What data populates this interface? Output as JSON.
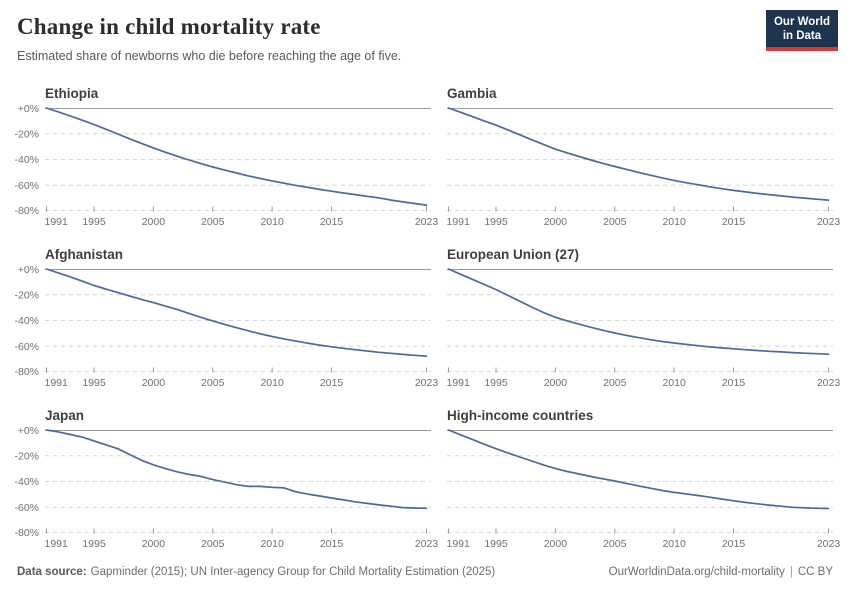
{
  "header": {
    "title": "Change in child mortality rate",
    "subtitle": "Estimated share of newborns who die before reaching the age of five.",
    "logo": {
      "line1": "Our World",
      "line2": "in Data"
    }
  },
  "footer": {
    "datasource_label": "Data source:",
    "datasource_text": "Gapminder (2015); UN Inter-agency Group for Child Mortality Estimation (2025)",
    "link": "OurWorldinData.org/child-mortality",
    "separator": "|",
    "license": "CC BY"
  },
  "colors": {
    "line": "#4c6a9c",
    "grid_solid": "#9b9b9b",
    "grid_dash": "#d5d5d5",
    "axis_text": "#717171",
    "facet_title": "#3f3f3f",
    "title": "#2d2d2d",
    "subtitle": "#5a5a5a",
    "footer": "#6e6e6e",
    "footer_label": "#595959",
    "logo_bg": "#1d3350",
    "logo_red": "#d73a36"
  },
  "chart_data": {
    "type": "line",
    "title": "Change in child mortality rate",
    "subtitle": "Estimated share of newborns who die before reaching the age of five.",
    "layout": "2x3 small multiples, shared y-axis labels on left column, horizontal dashed grid, no legend",
    "xlabel": "",
    "ylabel": "",
    "xlim": [
      1991,
      2023
    ],
    "ylim": [
      -80,
      0
    ],
    "x_ticks": [
      1991,
      1995,
      2000,
      2005,
      2010,
      2015,
      2023
    ],
    "x_tick_labels": [
      "1991",
      "1995",
      "2000",
      "2005",
      "2010",
      "2015",
      "2023"
    ],
    "y_ticks": [
      0,
      -20,
      -40,
      -60,
      -80
    ],
    "y_tick_labels": [
      "+0%",
      "-20%",
      "-40%",
      "-60%",
      "-80%"
    ],
    "x": [
      1991,
      1992,
      1993,
      1994,
      1995,
      1996,
      1997,
      1998,
      1999,
      2000,
      2001,
      2002,
      2003,
      2004,
      2005,
      2006,
      2007,
      2008,
      2009,
      2010,
      2011,
      2012,
      2013,
      2014,
      2015,
      2016,
      2017,
      2018,
      2019,
      2020,
      2021,
      2022,
      2023
    ],
    "series": [
      {
        "name": "Ethiopia",
        "values": [
          0,
          -3,
          -6.2,
          -9.5,
          -12.8,
          -16.5,
          -20.2,
          -23.9,
          -27.5,
          -31,
          -34.3,
          -37.4,
          -40.4,
          -43.2,
          -45.8,
          -48.2,
          -50.5,
          -52.7,
          -54.7,
          -56.6,
          -58.4,
          -60.1,
          -61.7,
          -63.2,
          -64.6,
          -66,
          -67.3,
          -68.6,
          -69.8,
          -71.5,
          -72.9,
          -74.2,
          -75.4
        ]
      },
      {
        "name": "Gambia",
        "values": [
          0,
          -3.3,
          -6.7,
          -10,
          -13.3,
          -17,
          -20.8,
          -24.6,
          -28.3,
          -32,
          -34.9,
          -37.7,
          -40.4,
          -43,
          -45.4,
          -47.7,
          -50,
          -52.2,
          -54.3,
          -56.2,
          -58,
          -59.6,
          -61.2,
          -62.7,
          -64,
          -65.2,
          -66.3,
          -67.3,
          -68.3,
          -69.2,
          -70,
          -70.8,
          -71.5
        ]
      },
      {
        "name": "Afghanistan",
        "values": [
          0,
          -3,
          -6.1,
          -9.4,
          -12.8,
          -15.6,
          -18.3,
          -21,
          -23.6,
          -26.1,
          -28.8,
          -31.4,
          -34.5,
          -37.5,
          -40.3,
          -43,
          -45.6,
          -48,
          -50.3,
          -52.4,
          -54.3,
          -56,
          -57.6,
          -59.1,
          -60.4,
          -61.6,
          -62.7,
          -63.7,
          -64.7,
          -65.5,
          -66.3,
          -67,
          -67.7
        ]
      },
      {
        "name": "European Union (27)",
        "values": [
          0,
          -4,
          -8,
          -12,
          -16,
          -20.5,
          -25,
          -29.5,
          -33.8,
          -37.5,
          -40.3,
          -42.9,
          -45.3,
          -47.6,
          -49.7,
          -51.6,
          -53.3,
          -54.9,
          -56.3,
          -57.5,
          -58.6,
          -59.6,
          -60.5,
          -61.3,
          -62,
          -62.7,
          -63.3,
          -63.9,
          -64.4,
          -64.9,
          -65.4,
          -65.8,
          -66.2
        ]
      },
      {
        "name": "Japan",
        "values": [
          0,
          -1.5,
          -3.5,
          -5.5,
          -8.5,
          -11.5,
          -14.5,
          -19,
          -23.5,
          -27,
          -30,
          -32.5,
          -34.5,
          -36,
          -38.5,
          -40.5,
          -42.5,
          -43.8,
          -43.8,
          -44.5,
          -45,
          -48,
          -49.8,
          -51.3,
          -52.8,
          -54.3,
          -55.8,
          -57,
          -58.2,
          -59.2,
          -60.3,
          -60.6,
          -60.8
        ]
      },
      {
        "name": "High-income countries",
        "values": [
          0,
          -3.7,
          -7.3,
          -11,
          -14.5,
          -17.8,
          -21,
          -24.1,
          -27.1,
          -30,
          -32.2,
          -34.2,
          -36.1,
          -37.9,
          -39.6,
          -41.5,
          -43.4,
          -45.2,
          -47,
          -48.5,
          -49.6,
          -50.9,
          -52.2,
          -53.6,
          -55,
          -56.2,
          -57.3,
          -58.3,
          -59.2,
          -60,
          -60.5,
          -60.8,
          -61
        ]
      }
    ]
  }
}
